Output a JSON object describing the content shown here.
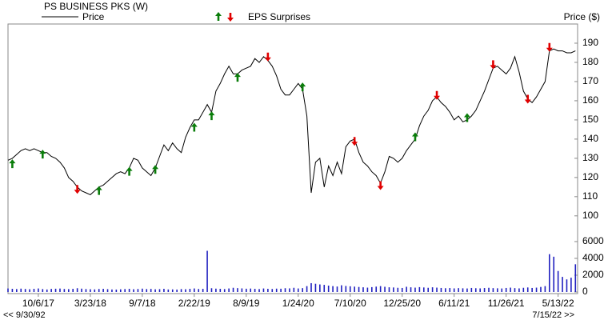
{
  "chart_data": {
    "type": "line",
    "title": "PS BUSINESS PKS (W)",
    "y_label": "Price ($)",
    "eps_label": "EPS Surprises",
    "nav": {
      "left": "<< 9/30/92",
      "right": "7/15/22 >>"
    },
    "x": [
      "6/30/17",
      "7/14/17",
      "7/28/17",
      "8/11/17",
      "8/25/17",
      "9/8/17",
      "9/22/17",
      "10/6/17",
      "10/20/17",
      "11/3/17",
      "11/17/17",
      "12/1/17",
      "12/15/17",
      "12/29/17",
      "1/12/18",
      "1/26/18",
      "2/9/18",
      "2/23/18",
      "3/9/18",
      "3/23/18",
      "4/6/18",
      "4/20/18",
      "5/4/18",
      "5/18/18",
      "6/1/18",
      "6/15/18",
      "6/29/18",
      "7/13/18",
      "7/27/18",
      "8/10/18",
      "8/24/18",
      "9/7/18",
      "9/21/18",
      "10/5/18",
      "10/19/18",
      "11/2/18",
      "11/16/18",
      "11/30/18",
      "12/14/18",
      "12/28/18",
      "1/11/19",
      "1/25/19",
      "2/8/19",
      "2/22/19",
      "3/8/19",
      "3/22/19",
      "4/5/19",
      "4/19/19",
      "5/3/19",
      "5/17/19",
      "5/31/19",
      "6/14/19",
      "6/28/19",
      "7/12/19",
      "7/26/19",
      "8/9/19",
      "8/23/19",
      "9/6/19",
      "9/20/19",
      "10/4/19",
      "10/18/19",
      "11/1/19",
      "11/15/19",
      "11/29/19",
      "12/13/19",
      "12/27/19",
      "1/10/20",
      "1/24/20",
      "2/7/20",
      "2/21/20",
      "3/6/20",
      "3/20/20",
      "4/3/20",
      "4/17/20",
      "5/1/20",
      "5/15/20",
      "5/29/20",
      "6/12/20",
      "6/26/20",
      "7/10/20",
      "7/24/20",
      "8/7/20",
      "8/21/20",
      "9/4/20",
      "9/18/20",
      "10/2/20",
      "10/16/20",
      "10/30/20",
      "11/13/20",
      "11/27/20",
      "12/11/20",
      "12/25/20",
      "1/8/21",
      "1/22/21",
      "2/5/21",
      "2/19/21",
      "3/5/21",
      "3/19/21",
      "4/2/21",
      "4/16/21",
      "4/30/21",
      "5/14/21",
      "5/28/21",
      "6/11/21",
      "6/25/21",
      "7/9/21",
      "7/23/21",
      "8/6/21",
      "8/20/21",
      "9/3/21",
      "9/17/21",
      "10/1/21",
      "10/15/21",
      "10/29/21",
      "11/12/21",
      "11/26/21",
      "12/10/21",
      "12/24/21",
      "1/7/22",
      "1/21/22",
      "2/4/22",
      "2/18/22",
      "3/4/22",
      "3/18/22",
      "4/1/22",
      "4/15/22",
      "4/29/22",
      "5/13/22",
      "5/27/22",
      "6/10/22",
      "6/24/22",
      "7/8/22"
    ],
    "series": [
      {
        "name": "Price",
        "color": "#000000",
        "values": [
          129,
          130,
          132,
          134,
          135,
          134,
          135,
          134,
          133,
          133,
          131,
          130,
          128,
          125,
          120,
          118,
          115,
          113,
          112,
          111,
          113,
          115,
          116,
          118,
          120,
          122,
          123,
          122,
          125,
          130,
          129,
          125,
          123,
          121,
          125,
          131,
          137,
          134,
          138,
          135,
          133,
          141,
          146,
          150,
          150,
          154,
          158,
          154,
          165,
          169,
          174,
          178,
          174,
          174,
          176,
          177,
          178,
          182,
          180,
          183,
          181,
          178,
          173,
          166,
          163,
          163,
          166,
          169,
          166,
          152,
          112,
          128,
          130,
          115,
          126,
          121,
          128,
          122,
          136,
          139,
          140,
          133,
          128,
          126,
          123,
          121,
          117,
          123,
          131,
          130,
          128,
          130,
          134,
          137,
          140,
          147,
          152,
          155,
          160,
          162,
          159,
          157,
          154,
          150,
          152,
          149,
          150,
          152,
          155,
          160,
          165,
          171,
          177,
          178,
          176,
          174,
          177,
          183,
          175,
          165,
          161,
          159,
          162,
          166,
          170,
          186,
          187,
          186,
          186,
          185,
          185,
          186
        ]
      },
      {
        "axis": "y2",
        "color": "#2020c0",
        "values": [
          420,
          380,
          350,
          400,
          360,
          330,
          380,
          420,
          350,
          300,
          370,
          390,
          410,
          360,
          340,
          380,
          450,
          400,
          350,
          330,
          310,
          360,
          380,
          340,
          300,
          290,
          320,
          350,
          380,
          330,
          360,
          400,
          350,
          370,
          320,
          340,
          380,
          300,
          310,
          290,
          350,
          330,
          380,
          420,
          360,
          380,
          4900,
          450,
          400,
          380,
          350,
          420,
          500,
          460,
          430,
          390,
          410,
          380,
          350,
          420,
          380,
          360,
          400,
          390,
          450,
          430,
          500,
          420,
          460,
          700,
          1050,
          980,
          900,
          850,
          760,
          700,
          650,
          800,
          720,
          680,
          640,
          600,
          560,
          520,
          580,
          640,
          700,
          620,
          560,
          540,
          500,
          480,
          620,
          560,
          520,
          580,
          540,
          500,
          560,
          520,
          480,
          450,
          470,
          430,
          460,
          440,
          420,
          480,
          450,
          430,
          470,
          500,
          460,
          440,
          420,
          480,
          520,
          460,
          430,
          500,
          540,
          480,
          520,
          600,
          700,
          4500,
          4200,
          2500,
          1800,
          1500,
          1700,
          3300
        ]
      }
    ],
    "eps_surprises": [
      {
        "x": "7/14/17",
        "y": 127,
        "direction": "up"
      },
      {
        "x": "10/20/17",
        "y": 132,
        "direction": "up"
      },
      {
        "x": "2/9/18",
        "y": 114,
        "direction": "down"
      },
      {
        "x": "4/20/18",
        "y": 113,
        "direction": "up"
      },
      {
        "x": "7/27/18",
        "y": 123,
        "direction": "up"
      },
      {
        "x": "10/19/18",
        "y": 124,
        "direction": "up"
      },
      {
        "x": "2/22/19",
        "y": 146,
        "direction": "up"
      },
      {
        "x": "4/19/19",
        "y": 152,
        "direction": "up"
      },
      {
        "x": "7/12/19",
        "y": 172,
        "direction": "up"
      },
      {
        "x": "10/18/19",
        "y": 183,
        "direction": "down"
      },
      {
        "x": "2/7/20",
        "y": 167,
        "direction": "up"
      },
      {
        "x": "7/24/20",
        "y": 139,
        "direction": "down"
      },
      {
        "x": "10/16/20",
        "y": 116,
        "direction": "down"
      },
      {
        "x": "2/5/21",
        "y": 141,
        "direction": "up"
      },
      {
        "x": "4/16/21",
        "y": 163,
        "direction": "down"
      },
      {
        "x": "7/23/21",
        "y": 151,
        "direction": "up"
      },
      {
        "x": "10/15/21",
        "y": 179,
        "direction": "down"
      },
      {
        "x": "2/4/22",
        "y": 161,
        "direction": "down"
      },
      {
        "x": "4/15/22",
        "y": 188,
        "direction": "down"
      }
    ],
    "eps_colors": {
      "up": "#0a7d0a",
      "down": "#e00000"
    },
    "xlim": [
      "6/30/17",
      "7/15/22"
    ],
    "xticks": [
      "10/6/17",
      "3/23/18",
      "9/7/18",
      "2/22/19",
      "8/9/19",
      "1/24/20",
      "7/10/20",
      "12/25/20",
      "6/11/21",
      "11/26/21",
      "5/13/22"
    ],
    "ylim": [
      92,
      200
    ],
    "yticks": [
      100,
      110,
      120,
      130,
      140,
      150,
      160,
      170,
      180,
      190
    ],
    "y2lim": [
      0,
      6700
    ],
    "y2ticks": [
      0,
      2000,
      4000,
      6000
    ],
    "y2_color": "#2020c0"
  }
}
